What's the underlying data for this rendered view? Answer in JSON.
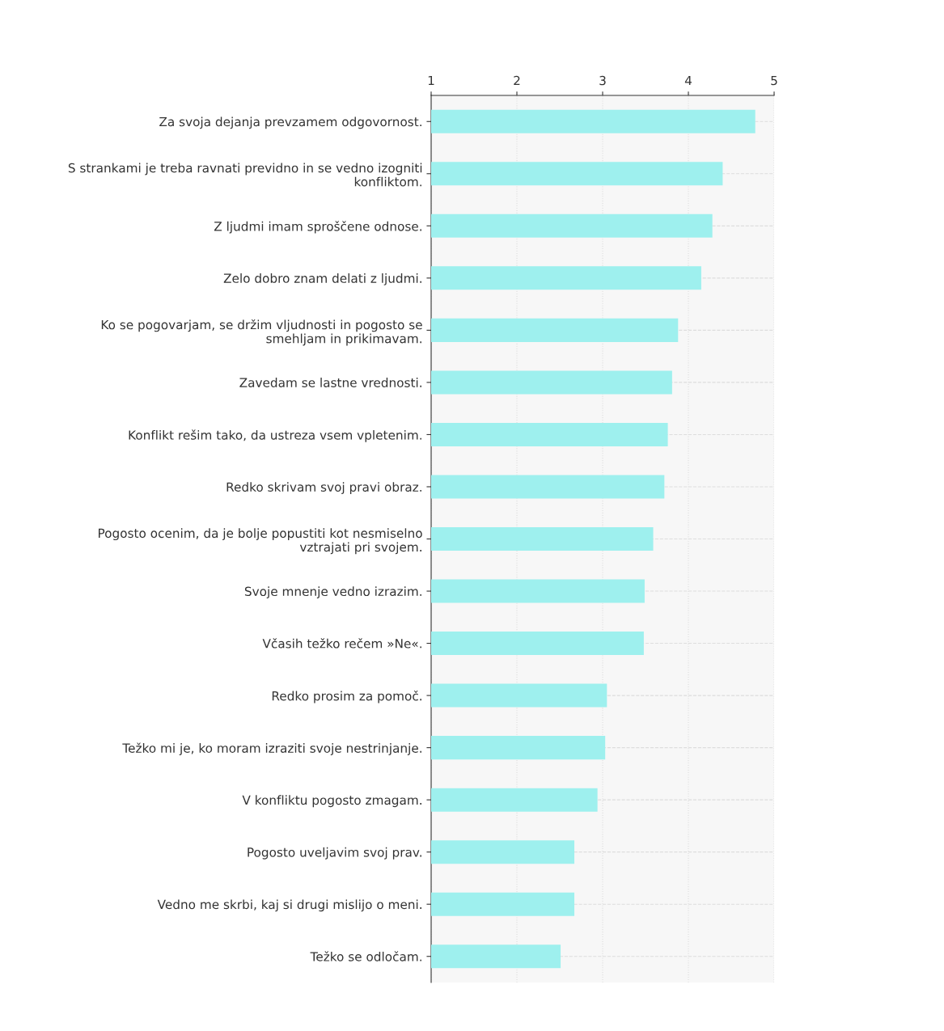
{
  "chart_data": {
    "type": "bar",
    "orientation": "horizontal",
    "categories": [
      "Za svoja dejanja prevzamem odgovornost.",
      "S strankami je treba ravnati previdno in se vedno izogniti\nkonfliktom.",
      "Z ljudmi imam sproščene odnose.",
      "Zelo dobro znam delati z ljudmi.",
      "Ko se pogovarjam, se držim vljudnosti in pogosto se\nsmehljam in prikimavam.",
      "Zavedam se lastne vrednosti.",
      "Konflikt rešim tako, da ustreza vsem vpletenim.",
      "Redko skrivam svoj pravi obraz.",
      "Pogosto ocenim, da je bolje popustiti kot nesmiselno\nvztrajati pri svojem.",
      "Svoje mnenje vedno izrazim.",
      "Včasih težko rečem »Ne«.",
      "Redko prosim za pomoč.",
      "Težko mi je, ko moram izraziti svoje nestrinjanje.",
      "V konfliktu pogosto zmagam.",
      "Pogosto uveljavim svoj prav.",
      "Vedno me skrbi, kaj si drugi mislijo o meni.",
      "Težko se odločam."
    ],
    "values": [
      4.78,
      4.4,
      4.28,
      4.15,
      3.88,
      3.81,
      3.76,
      3.72,
      3.59,
      3.49,
      3.48,
      3.05,
      3.03,
      2.94,
      2.67,
      2.67,
      2.51
    ],
    "color": "#9ef0ee",
    "xlim": [
      1,
      5
    ],
    "xticks": [
      1,
      2,
      3,
      4,
      5
    ],
    "grid": true
  }
}
